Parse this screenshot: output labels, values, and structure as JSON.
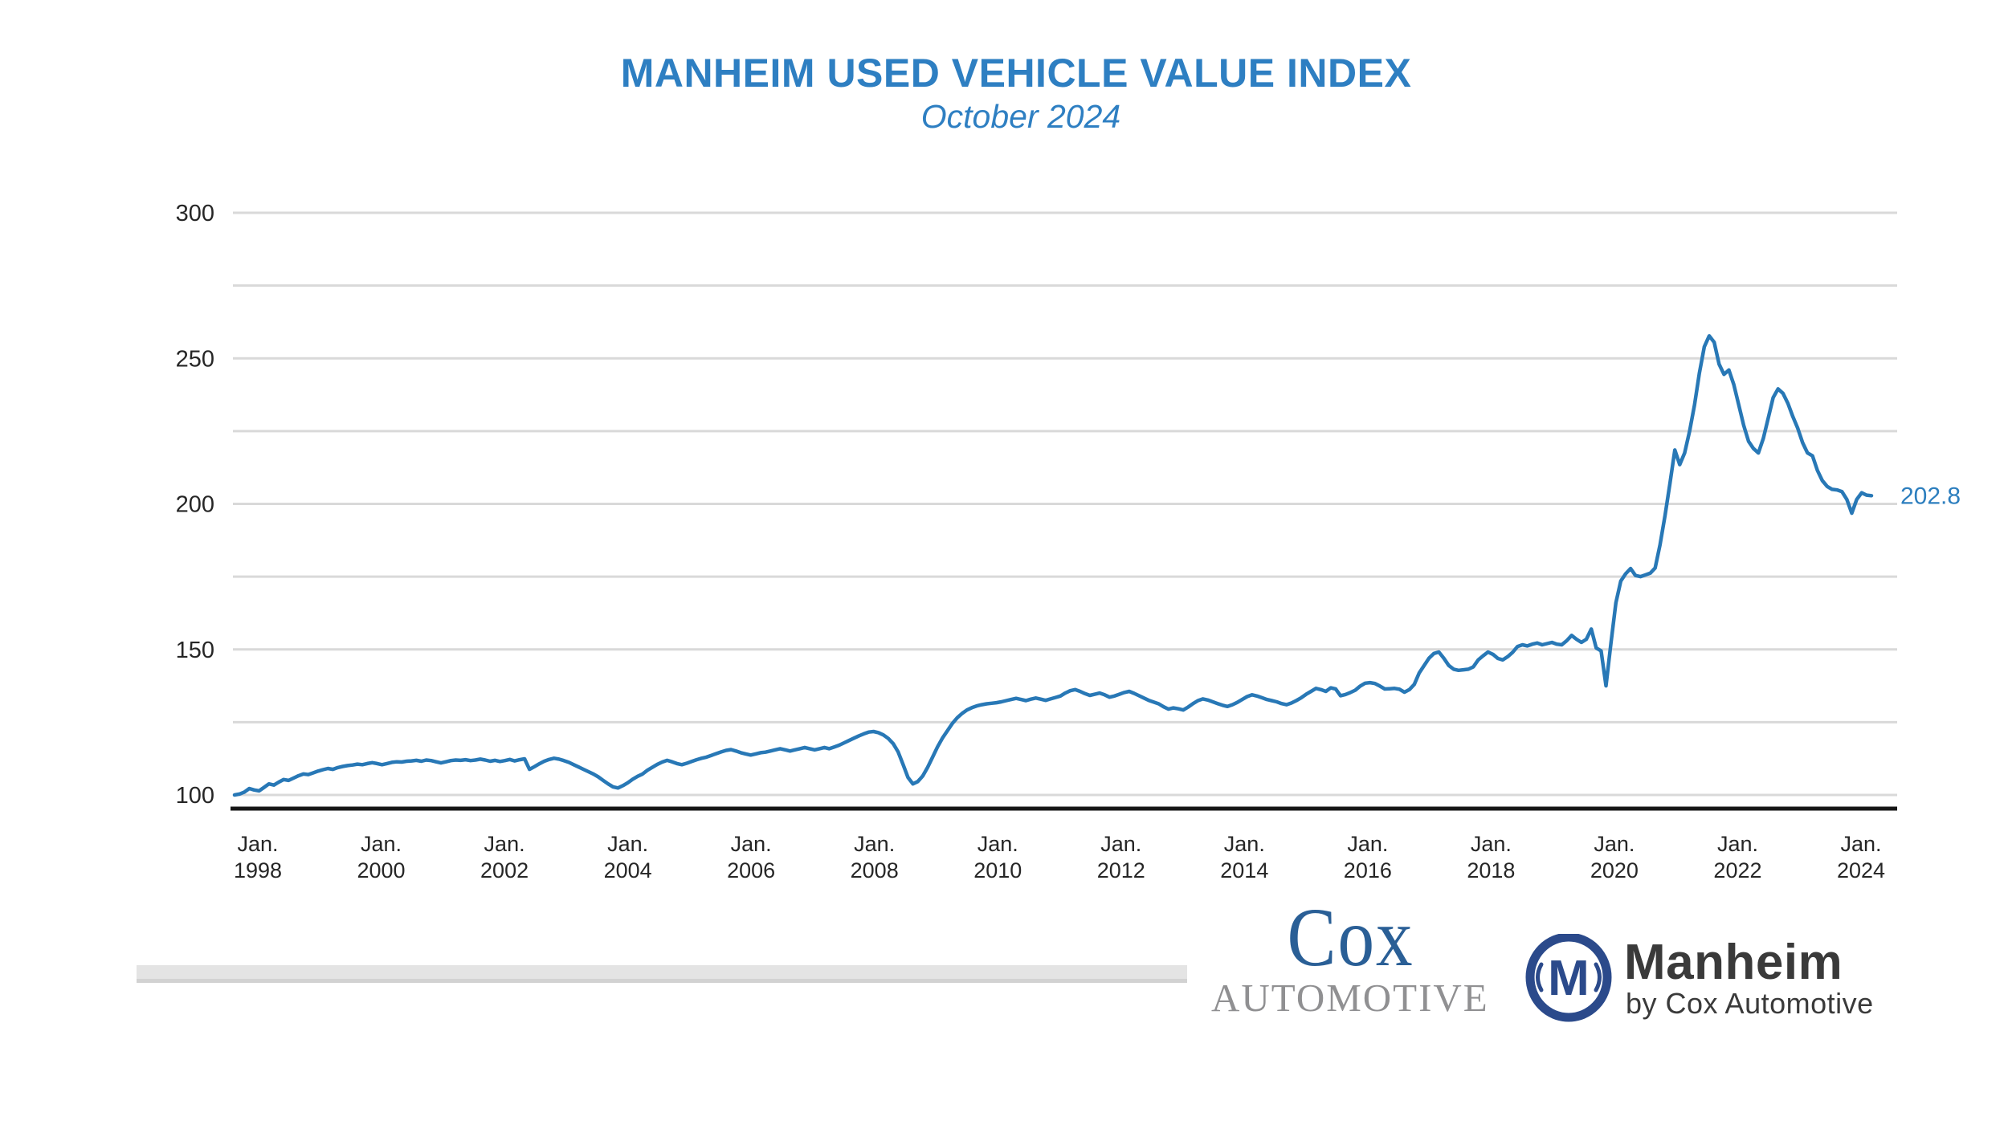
{
  "header": {
    "title": "MANHEIM USED VEHICLE VALUE INDEX",
    "subtitle": "October 2024"
  },
  "chart_data": {
    "type": "line",
    "title": "MANHEIM USED VEHICLE VALUE INDEX",
    "subtitle": "October 2024",
    "xlabel": "",
    "ylabel": "",
    "grid": "on",
    "legend": "none",
    "ylim": [
      95,
      305
    ],
    "y_ticks_labeled": [
      100,
      150,
      200,
      250,
      300
    ],
    "y_gridline_step": 25,
    "x_ticks": [
      {
        "month": "Jan.",
        "year": "1998"
      },
      {
        "month": "Jan.",
        "year": "2000"
      },
      {
        "month": "Jan.",
        "year": "2002"
      },
      {
        "month": "Jan.",
        "year": "2004"
      },
      {
        "month": "Jan.",
        "year": "2006"
      },
      {
        "month": "Jan.",
        "year": "2008"
      },
      {
        "month": "Jan.",
        "year": "2010"
      },
      {
        "month": "Jan.",
        "year": "2012"
      },
      {
        "month": "Jan.",
        "year": "2014"
      },
      {
        "month": "Jan.",
        "year": "2016"
      },
      {
        "month": "Jan.",
        "year": "2018"
      },
      {
        "month": "Jan.",
        "year": "2020"
      },
      {
        "month": "Jan.",
        "year": "2022"
      },
      {
        "month": "Jan.",
        "year": "2024"
      }
    ],
    "series": [
      {
        "name": "Manheim Used Vehicle Value Index",
        "frequency": "monthly",
        "start": "1997-01",
        "end": "2024-10",
        "values": [
          100.0,
          100.3,
          101.0,
          102.2,
          101.7,
          101.4,
          102.6,
          103.8,
          103.4,
          104.4,
          105.3,
          105.0,
          105.8,
          106.6,
          107.2,
          107.0,
          107.6,
          108.2,
          108.7,
          109.1,
          108.8,
          109.4,
          109.8,
          110.1,
          110.3,
          110.6,
          110.4,
          110.8,
          111.1,
          110.8,
          110.4,
          110.8,
          111.2,
          111.4,
          111.3,
          111.6,
          111.7,
          111.9,
          111.6,
          112.0,
          111.8,
          111.4,
          111.0,
          111.4,
          111.8,
          112.0,
          111.9,
          112.1,
          111.8,
          112.0,
          112.3,
          112.0,
          111.6,
          111.9,
          111.5,
          111.8,
          112.2,
          111.7,
          112.1,
          112.4,
          108.8,
          109.7,
          110.7,
          111.6,
          112.2,
          112.6,
          112.3,
          111.8,
          111.2,
          110.4,
          109.6,
          108.8,
          108.0,
          107.2,
          106.2,
          105.0,
          103.8,
          102.8,
          102.4,
          103.2,
          104.2,
          105.4,
          106.4,
          107.2,
          108.5,
          109.5,
          110.5,
          111.3,
          111.9,
          111.4,
          110.8,
          110.4,
          110.9,
          111.5,
          112.1,
          112.6,
          113.0,
          113.6,
          114.2,
          114.8,
          115.3,
          115.6,
          115.1,
          114.5,
          114.1,
          113.7,
          114.1,
          114.5,
          114.7,
          115.1,
          115.5,
          115.9,
          115.5,
          115.1,
          115.5,
          115.9,
          116.3,
          115.9,
          115.5,
          115.9,
          116.3,
          115.9,
          116.5,
          117.1,
          117.9,
          118.7,
          119.5,
          120.3,
          121.0,
          121.6,
          121.8,
          121.4,
          120.6,
          119.4,
          117.6,
          114.8,
          110.5,
          106.0,
          103.8,
          104.6,
          106.5,
          109.5,
          113.0,
          116.5,
          119.5,
          122.0,
          124.5,
          126.5,
          128.0,
          129.2,
          130.0,
          130.6,
          131.0,
          131.3,
          131.5,
          131.7,
          132.0,
          132.4,
          132.8,
          133.2,
          132.8,
          132.4,
          132.9,
          133.3,
          132.9,
          132.5,
          133.0,
          133.5,
          134.0,
          135.0,
          135.8,
          136.2,
          135.6,
          134.8,
          134.2,
          134.6,
          135.0,
          134.4,
          133.6,
          134.0,
          134.6,
          135.2,
          135.6,
          134.9,
          134.1,
          133.3,
          132.5,
          131.9,
          131.3,
          130.3,
          129.5,
          129.9,
          129.6,
          129.2,
          130.2,
          131.4,
          132.4,
          133.0,
          132.6,
          132.0,
          131.4,
          130.8,
          130.4,
          131.0,
          131.8,
          132.8,
          133.8,
          134.4,
          134.0,
          133.4,
          132.8,
          132.4,
          132.0,
          131.4,
          131.0,
          131.6,
          132.4,
          133.4,
          134.6,
          135.6,
          136.6,
          136.2,
          135.6,
          136.8,
          136.4,
          134.1,
          134.5,
          135.2,
          136.0,
          137.4,
          138.4,
          138.6,
          138.3,
          137.4,
          136.4,
          136.5,
          136.6,
          136.3,
          135.3,
          136.2,
          138.0,
          141.9,
          144.5,
          147.0,
          148.6,
          149.1,
          147.0,
          144.5,
          143.2,
          142.8,
          143.0,
          143.2,
          144.0,
          146.4,
          147.8,
          149.1,
          148.3,
          146.9,
          146.4,
          147.5,
          149.0,
          151.0,
          151.6,
          151.2,
          151.8,
          152.2,
          151.6,
          152.0,
          152.4,
          151.8,
          151.6,
          153.0,
          154.8,
          153.5,
          152.4,
          153.5,
          157.0,
          150.5,
          149.5,
          137.5,
          152.0,
          166.0,
          173.5,
          176.0,
          177.8,
          175.4,
          175.0,
          175.6,
          176.2,
          178.0,
          186.0,
          196.0,
          207.0,
          218.5,
          213.5,
          217.5,
          225.0,
          234.0,
          245.0,
          254.0,
          257.7,
          255.5,
          248.0,
          244.5,
          246.0,
          241.0,
          234.0,
          227.0,
          221.5,
          219.0,
          217.5,
          222.5,
          229.5,
          236.5,
          239.5,
          238.0,
          234.5,
          230.0,
          226.0,
          221.0,
          217.5,
          216.5,
          211.5,
          208.0,
          206.0,
          205.0,
          204.8,
          204.2,
          201.5,
          196.8,
          201.5,
          203.8,
          203.0,
          202.8
        ]
      }
    ],
    "last_value_label": "202.8"
  },
  "footer": {
    "cox_logo": {
      "word": "Cox",
      "company": "AUTOMOTIVE"
    },
    "manheim_logo": {
      "monogram": "M",
      "name": "Manheim",
      "tagline": "by Cox Automotive"
    }
  },
  "colors": {
    "title_blue": "#2E7FC2",
    "line_blue": "#2878B6",
    "end_label_blue": "#2C7EBE",
    "gridline": "#D9D9D9",
    "axis_line": "#161616",
    "tick_text": "#262626",
    "cox_blue": "#2A5F96",
    "cox_gray": "#909092",
    "manheim_navy": "#2B4A8B",
    "logo_text": "#3A3A3A",
    "footer_bar": "#E4E4E4"
  }
}
